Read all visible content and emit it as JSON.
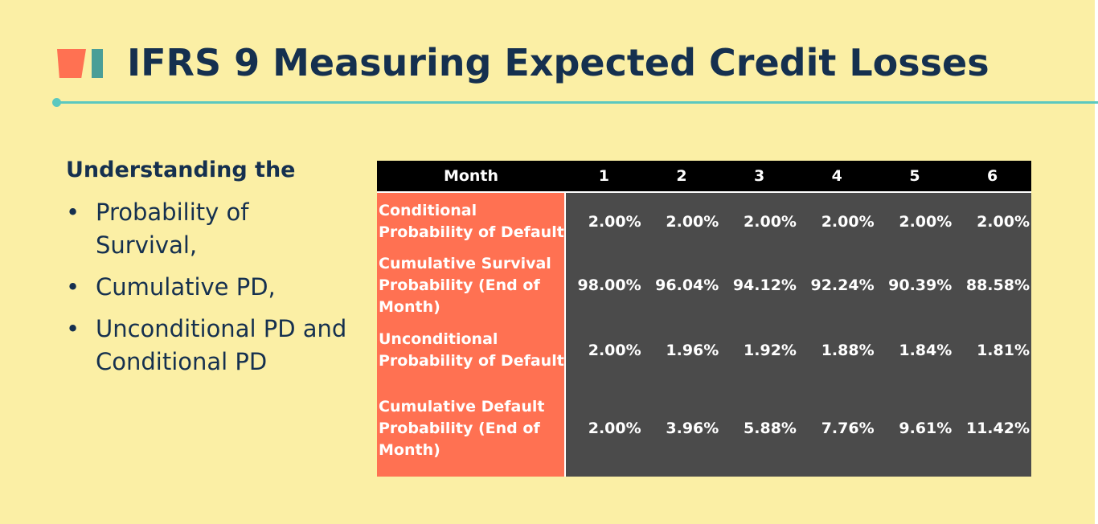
{
  "slide": {
    "title": "IFRS 9 Measuring Expected Credit Losses",
    "colors": {
      "background": "#FBEFA5",
      "title": "#15304F",
      "accent_coral": "#FF7152",
      "accent_teal": "#4A9E97",
      "rule": "#5BC8BF",
      "table_header": "#000000",
      "table_label": "#FF7152",
      "table_body": "#4B4B4B"
    }
  },
  "left": {
    "heading": "Understanding the",
    "bullet_symbol": "•",
    "bullets": [
      "Probability of Survival,",
      "Cumulative PD,",
      "Unconditional PD and Conditional PD"
    ]
  },
  "table": {
    "header": {
      "label": "Month",
      "months": [
        "1",
        "2",
        "3",
        "4",
        "5",
        "6"
      ]
    },
    "rows": [
      {
        "label": "Conditional Probability of Default",
        "values": [
          "2.00%",
          "2.00%",
          "2.00%",
          "2.00%",
          "2.00%",
          "2.00%"
        ]
      },
      {
        "label": "Cumulative Survival Probability (End of Month)",
        "values": [
          "98.00%",
          "96.04%",
          "94.12%",
          "92.24%",
          "90.39%",
          "88.58%"
        ]
      },
      {
        "label": "Unconditional Probability of Default",
        "values": [
          "2.00%",
          "1.96%",
          "1.92%",
          "1.88%",
          "1.84%",
          "1.81%"
        ]
      },
      {
        "label": "Cumulative Default Probability (End of Month)",
        "values": [
          "2.00%",
          "3.96%",
          "5.88%",
          "7.76%",
          "9.61%",
          "11.42%"
        ]
      }
    ]
  }
}
